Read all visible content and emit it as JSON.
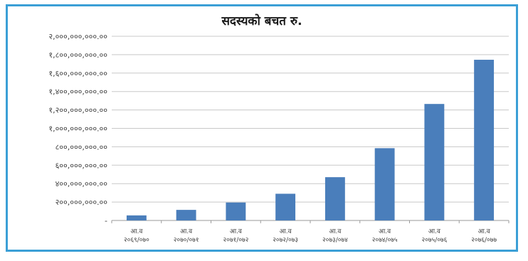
{
  "chart_data": {
    "type": "bar",
    "title": "सदस्यको बचत रु.",
    "xlabel": "",
    "ylabel": "",
    "ylim": [
      0,
      2000000000
    ],
    "grid": true,
    "y_tick_labels": [
      "-",
      "२००,०००,०००.००",
      "४००,०००,०००.००",
      "६००,०००,०००.००",
      "८००,०००,०००.००",
      "१,०००,०००,०००.००",
      "१,२००,०००,०००.००",
      "१,४००,०००,०००.००",
      "१,६००,०००,०००.००",
      "१,८००,०००,०००.००",
      "२,०००,०००,०००.००"
    ],
    "categories": [
      [
        "आ.व",
        "२०६९/०७०"
      ],
      [
        "आ.व",
        "२०७०/०७१"
      ],
      [
        "आ.व",
        "२०७१/०७२"
      ],
      [
        "आ.व",
        "२०७२/०७३"
      ],
      [
        "आ.व",
        "२०७३/०७४"
      ],
      [
        "आ.व",
        "२०७४/०७५"
      ],
      [
        "आ.व",
        "२०७५/०७६"
      ],
      [
        "आ.व",
        "२०७६/०७७"
      ]
    ],
    "values": [
      55000000,
      115000000,
      195000000,
      290000000,
      470000000,
      785000000,
      1265000000,
      1745000000
    ],
    "bar_color": "#4a7ebb",
    "grid_color": "#c8c8c8"
  }
}
